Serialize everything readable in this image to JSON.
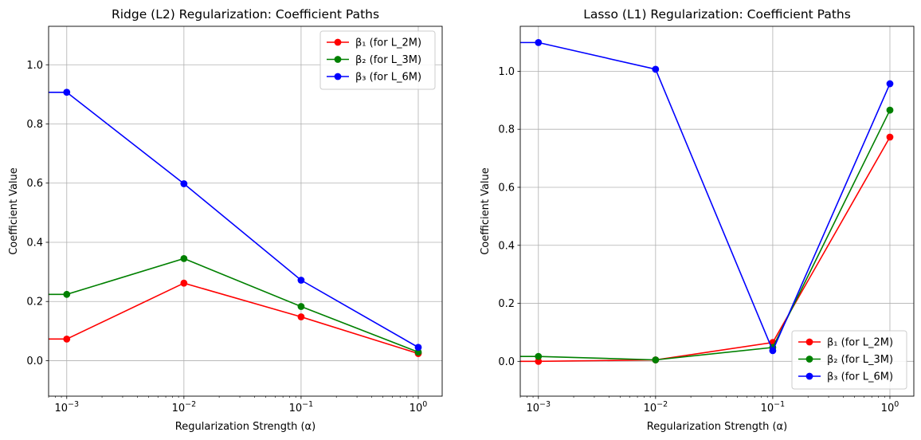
{
  "chart_data": [
    {
      "type": "line",
      "title": "Ridge (L2) Regularization: Coefficient Paths",
      "xlabel": "Regularization Strength (α)",
      "ylabel": "Coefficient Value",
      "xscale": "log",
      "xlim": [
        0.0007,
        1.6
      ],
      "ylim": [
        -0.12,
        1.13
      ],
      "x": [
        0.001,
        0.01,
        0.1,
        1
      ],
      "xticks": [
        {
          "value": 0.001,
          "base": "10",
          "exp": "−3"
        },
        {
          "value": 0.01,
          "base": "10",
          "exp": "−2"
        },
        {
          "value": 0.1,
          "base": "10",
          "exp": "−1"
        },
        {
          "value": 1,
          "base": "10",
          "exp": "0"
        }
      ],
      "yticks": [
        {
          "value": 0.0,
          "label": "0.0"
        },
        {
          "value": 0.2,
          "label": "0.2"
        },
        {
          "value": 0.4,
          "label": "0.4"
        },
        {
          "value": 0.6,
          "label": "0.6"
        },
        {
          "value": 0.8,
          "label": "0.8"
        },
        {
          "value": 1.0,
          "label": "1.0"
        }
      ],
      "grid": true,
      "legend_position": "top-right",
      "series": [
        {
          "name": "β₁ (for L_2M)",
          "color": "#ff0000",
          "values": [
            0.073,
            0.262,
            0.148,
            0.024
          ]
        },
        {
          "name": "β₂ (for L_3M)",
          "color": "#008000",
          "values": [
            0.224,
            0.345,
            0.183,
            0.029
          ]
        },
        {
          "name": "β₃ (for L_6M)",
          "color": "#0000ff",
          "values": [
            0.907,
            0.598,
            0.272,
            0.045
          ]
        }
      ]
    },
    {
      "type": "line",
      "title": "Lasso (L1) Regularization: Coefficient Paths",
      "xlabel": "Regularization Strength (α)",
      "ylabel": "Coefficient Value",
      "xscale": "log",
      "xlim": [
        0.0007,
        1.6
      ],
      "ylim": [
        -0.12,
        1.155
      ],
      "x": [
        0.001,
        0.01,
        0.1,
        1
      ],
      "xticks": [
        {
          "value": 0.001,
          "base": "10",
          "exp": "−3"
        },
        {
          "value": 0.01,
          "base": "10",
          "exp": "−2"
        },
        {
          "value": 0.1,
          "base": "10",
          "exp": "−1"
        },
        {
          "value": 1,
          "base": "10",
          "exp": "0"
        }
      ],
      "yticks": [
        {
          "value": 0.0,
          "label": "0.0"
        },
        {
          "value": 0.2,
          "label": "0.2"
        },
        {
          "value": 0.4,
          "label": "0.4"
        },
        {
          "value": 0.6,
          "label": "0.6"
        },
        {
          "value": 0.8,
          "label": "0.8"
        },
        {
          "value": 1.0,
          "label": "1.0"
        }
      ],
      "grid": true,
      "legend_position": "bottom-right",
      "series": [
        {
          "name": "β₁ (for L_2M)",
          "color": "#ff0000",
          "values": [
            0.0,
            0.005,
            0.065,
            0.773
          ]
        },
        {
          "name": "β₂ (for L_3M)",
          "color": "#008000",
          "values": [
            0.017,
            0.005,
            0.048,
            0.866
          ]
        },
        {
          "name": "β₃ (for L_6M)",
          "color": "#0000ff",
          "values": [
            1.099,
            1.007,
            0.037,
            0.957
          ]
        }
      ]
    }
  ]
}
